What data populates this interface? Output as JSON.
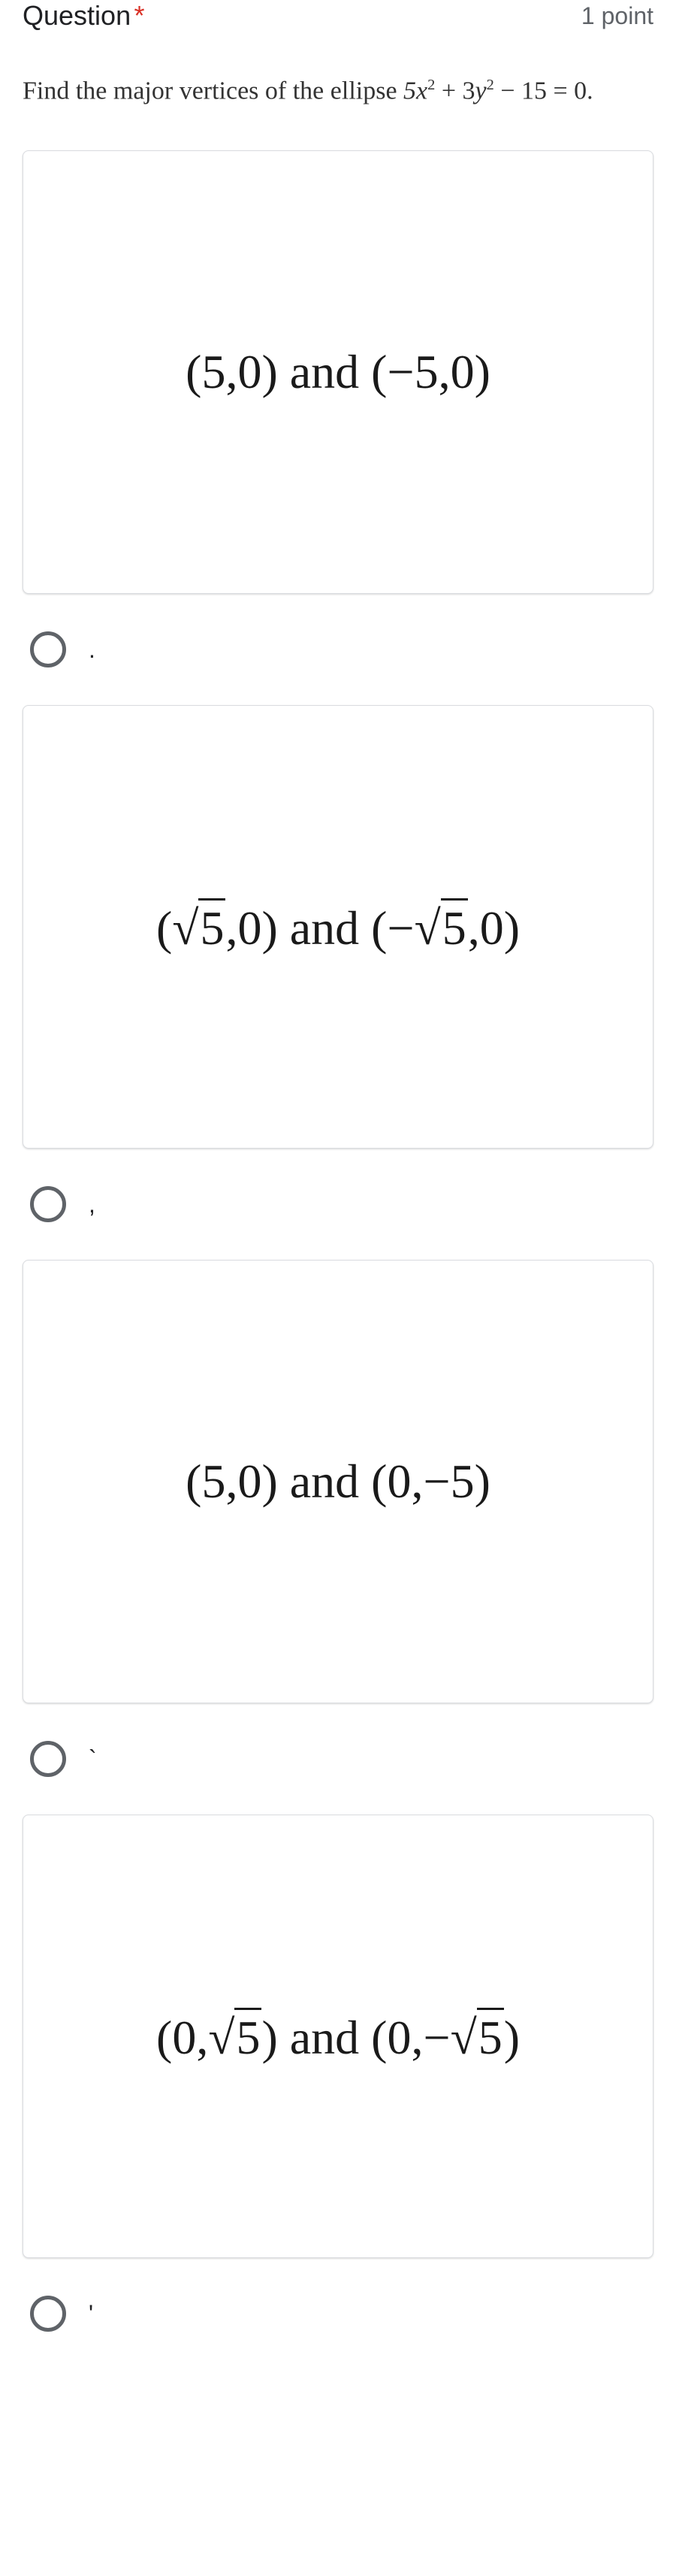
{
  "header": {
    "question_label": "Question",
    "required": "*",
    "points": "1 point"
  },
  "question": {
    "prompt_prefix": "Find the major vertices of the ellipse ",
    "equation": "5x² + 3y² − 15 = 0",
    "prompt_suffix": "."
  },
  "options": [
    {
      "math": "(5,0) and (−5,0)",
      "label": "."
    },
    {
      "math": "(√5,0) and (−√5,0)",
      "label": ","
    },
    {
      "math": "(5,0) and (0,−5)",
      "label": "`"
    },
    {
      "math": "(0,√5) and (0,−√5)",
      "label": "'"
    }
  ],
  "styling": {
    "card_border_color": "#dadce0",
    "radio_border_color": "#5f6368",
    "text_color": "#1a1a1a",
    "font_family_math": "Times New Roman",
    "font_family_header": "Comic Sans MS",
    "background": "#ffffff",
    "math_fontsize": 64,
    "header_fontsize": 36,
    "question_fontsize": 34
  }
}
